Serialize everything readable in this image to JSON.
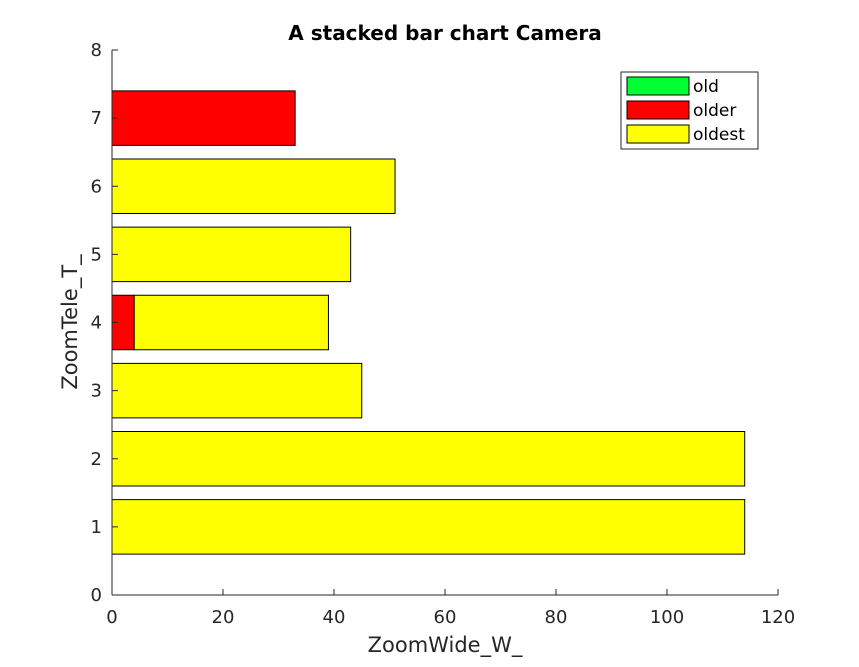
{
  "chart_data": {
    "type": "bar",
    "orientation": "horizontal",
    "stacked": true,
    "title": "A stacked bar chart Camera",
    "xlabel": "ZoomWide_W_",
    "ylabel": "ZoomTele_T_",
    "xlim": [
      0,
      120
    ],
    "ylim": [
      0,
      8
    ],
    "xticks": [
      0,
      20,
      40,
      60,
      80,
      100,
      120
    ],
    "yticks": [
      0,
      1,
      2,
      3,
      4,
      5,
      6,
      7,
      8
    ],
    "categories": [
      1,
      2,
      3,
      4,
      5,
      6,
      7
    ],
    "series": [
      {
        "name": "old",
        "color": "#00ff33",
        "values": [
          0,
          0,
          0,
          0,
          0,
          0,
          0
        ]
      },
      {
        "name": "older",
        "color": "#ff0000",
        "values": [
          0,
          0,
          0,
          4,
          0,
          0,
          33
        ]
      },
      {
        "name": "oldest",
        "color": "#ffff00",
        "values": [
          114,
          114,
          45,
          35,
          43,
          51,
          0
        ]
      }
    ],
    "legend_position": "top-right",
    "grid": false
  }
}
